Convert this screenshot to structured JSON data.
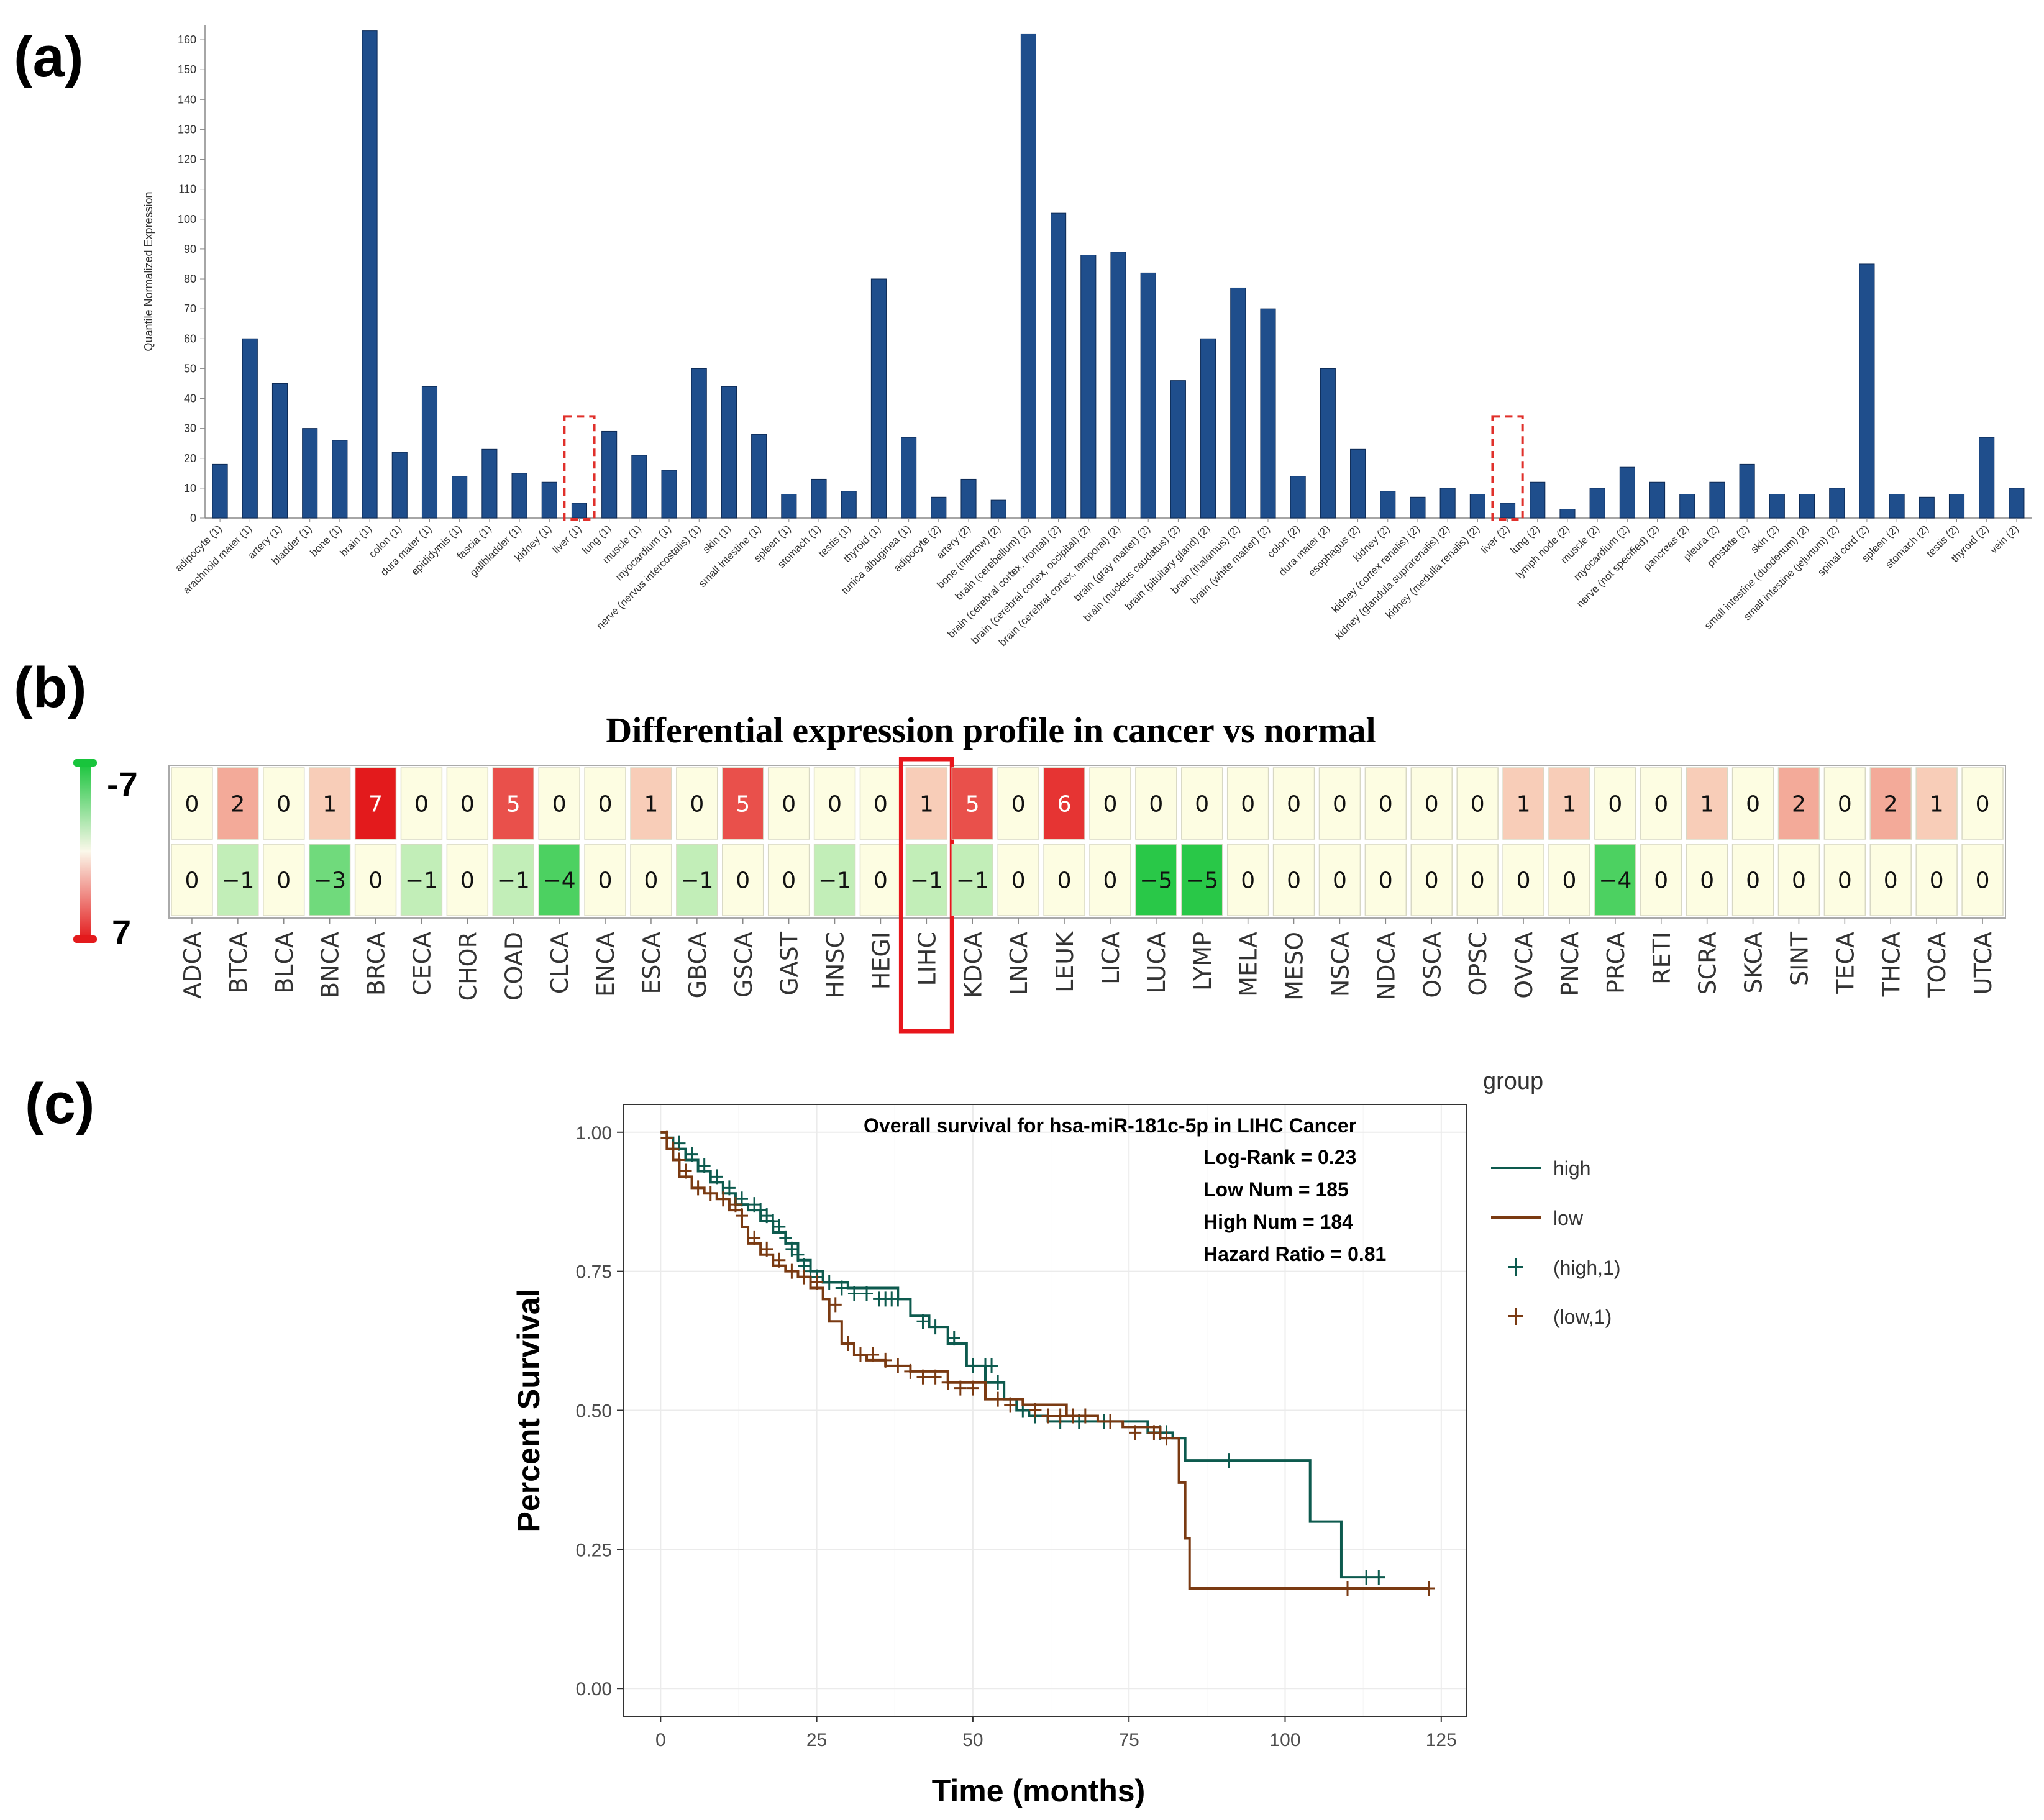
{
  "panel_labels": {
    "a": "(a)",
    "b": "(b)",
    "c": "(c)"
  },
  "chart_data": [
    {
      "panel": "a",
      "type": "bar",
      "ylabel": "Quantile Normalized Expression",
      "ylim": [
        0,
        165
      ],
      "yticks": [
        0,
        10,
        20,
        30,
        40,
        50,
        60,
        70,
        80,
        90,
        100,
        110,
        120,
        130,
        140,
        150,
        160
      ],
      "bar_color": "#1f4e8c",
      "highlight_color": "#e0302b",
      "highlighted": [
        "liver (1)",
        "liver (2)"
      ],
      "categories": [
        "adipocyte (1)",
        "arachnoid mater (1)",
        "artery (1)",
        "bladder (1)",
        "bone (1)",
        "brain (1)",
        "colon (1)",
        "dura mater (1)",
        "epididymis (1)",
        "fascia (1)",
        "gallbladder (1)",
        "kidney (1)",
        "liver (1)",
        "lung (1)",
        "muscle (1)",
        "myocardium (1)",
        "nerve (nervus intercostalis) (1)",
        "skin (1)",
        "small intestine (1)",
        "spleen (1)",
        "stomach (1)",
        "testis (1)",
        "thyroid (1)",
        "tunica albuginea (1)",
        "adipocyte (2)",
        "artery (2)",
        "bone (marrow) (2)",
        "brain (cerebellum) (2)",
        "brain (cerebral cortex, frontal) (2)",
        "brain (cerebral cortex, occipital) (2)",
        "brain (cerebral cortex, temporal) (2)",
        "brain (gray matter) (2)",
        "brain (nucleus caudatus) (2)",
        "brain (pituitary gland) (2)",
        "brain (thalamus) (2)",
        "brain (white matter) (2)",
        "colon (2)",
        "dura mater (2)",
        "esophagus (2)",
        "kidney (2)",
        "kidney (cortex renalis) (2)",
        "kidney (glandula suprarenalis) (2)",
        "kidney (medulla renalis) (2)",
        "liver (2)",
        "lung (2)",
        "lymph node (2)",
        "muscle (2)",
        "myocardium (2)",
        "nerve (not specified) (2)",
        "pancreas (2)",
        "pleura (2)",
        "prostate (2)",
        "skin (2)",
        "small intestine (duodenum) (2)",
        "small intestine (jejunum) (2)",
        "spinal cord (2)",
        "spleen (2)",
        "stomach (2)",
        "testis (2)",
        "thyroid (2)",
        "vein (2)"
      ],
      "values": [
        18,
        60,
        45,
        30,
        26,
        163,
        22,
        44,
        14,
        23,
        15,
        12,
        5,
        29,
        21,
        16,
        50,
        44,
        28,
        8,
        13,
        9,
        80,
        27,
        7,
        13,
        6,
        162,
        102,
        88,
        89,
        82,
        46,
        60,
        77,
        70,
        14,
        50,
        23,
        9,
        7,
        10,
        8,
        5,
        12,
        3,
        10,
        17,
        12,
        8,
        12,
        18,
        8,
        8,
        10,
        85,
        8,
        7,
        8,
        27,
        10
      ]
    },
    {
      "panel": "b",
      "type": "heatmap",
      "title": "Differential expression profile in cancer vs normal",
      "scale_top": "-7",
      "scale_bottom": "7",
      "highlighted": "LIHC",
      "categories": [
        "ADCA",
        "BTCA",
        "BLCA",
        "BNCA",
        "BRCA",
        "CECA",
        "CHOR",
        "COAD",
        "CLCA",
        "ENCA",
        "ESCA",
        "GBCA",
        "GSCA",
        "GAST",
        "HNSC",
        "HEGI",
        "LIHC",
        "KDCA",
        "LNCA",
        "LEUK",
        "LICA",
        "LUCA",
        "LYMP",
        "MELA",
        "MESO",
        "NSCA",
        "NDCA",
        "OSCA",
        "OPSC",
        "OVCA",
        "PNCA",
        "PRCA",
        "RETI",
        "SCRA",
        "SKCA",
        "SINT",
        "TECA",
        "THCA",
        "TOCA",
        "UTCA"
      ],
      "row_up": [
        0,
        2,
        0,
        1,
        7,
        0,
        0,
        5,
        0,
        0,
        1,
        0,
        5,
        0,
        0,
        0,
        1,
        5,
        0,
        6,
        0,
        0,
        0,
        0,
        0,
        0,
        0,
        0,
        0,
        1,
        1,
        0,
        0,
        1,
        0,
        2,
        0,
        2,
        1,
        0
      ],
      "row_down": [
        0,
        -1,
        0,
        -3,
        0,
        -1,
        0,
        -1,
        -4,
        0,
        0,
        -1,
        0,
        0,
        -1,
        0,
        -1,
        -1,
        0,
        0,
        0,
        -5,
        -5,
        0,
        0,
        0,
        0,
        0,
        0,
        0,
        0,
        -4,
        0,
        0,
        0,
        0,
        0,
        0,
        0,
        0
      ],
      "row_up_labels": [
        "0",
        "2",
        "0",
        "1",
        "7",
        "0",
        "0",
        "5",
        "0",
        "0",
        "1",
        "0",
        "5",
        "0",
        "0",
        "0",
        "1",
        "5",
        "0",
        "6",
        "0",
        "0",
        "0",
        "0",
        "0",
        "0",
        "0",
        "0",
        "0",
        "1",
        "1",
        "0",
        "0",
        "1",
        "0",
        "2",
        "0",
        "2",
        "1",
        "0"
      ],
      "row_down_labels": [
        "0",
        "−1",
        "0",
        "−3",
        "0",
        "−1",
        "0",
        "−1",
        "−4",
        "0",
        "0",
        "−1",
        "0",
        "0",
        "−1",
        "0",
        "−1",
        "−1",
        "0",
        "0",
        "0",
        "−5",
        "−5",
        "0",
        "0",
        "0",
        "0",
        "0",
        "0",
        "0",
        "0",
        "−4",
        "0",
        "0",
        "0",
        "0",
        "0",
        "0",
        "0",
        "0"
      ]
    },
    {
      "panel": "c",
      "type": "line",
      "subtype": "kaplan-meier",
      "title": "Overall survival for hsa-miR-181c-5p in LIHC Cancer",
      "annotations": [
        "Log-Rank = 0.23",
        "Low Num = 185",
        "High Num = 184",
        "Hazard Ratio = 0.81"
      ],
      "xlabel": "Time (months)",
      "ylabel": "Percent Survival",
      "xlim": [
        -6,
        129
      ],
      "ylim": [
        -0.05,
        1.05
      ],
      "xticks": [
        0,
        25,
        50,
        75,
        100,
        125
      ],
      "yticks": [
        0.0,
        0.25,
        0.5,
        0.75,
        1.0
      ],
      "ytick_labels": [
        "0.00",
        "0.25",
        "0.50",
        "0.75",
        "1.00"
      ],
      "legend_title": "group",
      "legend": [
        "high",
        "low",
        "(high,1)",
        "(low,1)"
      ],
      "series": [
        {
          "name": "high",
          "color": "#0d5a4e",
          "x": [
            0,
            1,
            2,
            4,
            6,
            8,
            10,
            12,
            14,
            16,
            18,
            20,
            22,
            24,
            26,
            30,
            38,
            40,
            43,
            46,
            49,
            52,
            55,
            57,
            59,
            62,
            70,
            78,
            82,
            84,
            104,
            109,
            116
          ],
          "y": [
            1.0,
            0.99,
            0.97,
            0.95,
            0.93,
            0.91,
            0.89,
            0.87,
            0.86,
            0.84,
            0.82,
            0.8,
            0.77,
            0.75,
            0.73,
            0.72,
            0.7,
            0.67,
            0.65,
            0.62,
            0.58,
            0.55,
            0.52,
            0.5,
            0.49,
            0.48,
            0.48,
            0.46,
            0.45,
            0.41,
            0.3,
            0.2,
            0.2
          ],
          "censor_x": [
            3,
            5,
            7,
            9,
            11,
            13,
            15,
            16,
            17,
            18,
            19,
            20,
            21,
            22,
            23,
            24,
            25,
            27,
            29,
            31,
            33,
            35,
            36,
            37,
            38,
            42,
            44,
            47,
            50,
            52,
            53,
            54,
            58,
            60,
            64,
            67,
            71,
            80,
            81,
            91,
            113,
            115
          ],
          "censor_y": [
            0.98,
            0.96,
            0.94,
            0.92,
            0.9,
            0.88,
            0.87,
            0.86,
            0.85,
            0.84,
            0.83,
            0.81,
            0.79,
            0.78,
            0.76,
            0.75,
            0.74,
            0.73,
            0.72,
            0.71,
            0.71,
            0.7,
            0.7,
            0.7,
            0.7,
            0.66,
            0.65,
            0.63,
            0.58,
            0.58,
            0.58,
            0.55,
            0.5,
            0.49,
            0.48,
            0.48,
            0.48,
            0.46,
            0.46,
            0.41,
            0.2,
            0.2
          ]
        },
        {
          "name": "low",
          "color": "#7a3a12",
          "x": [
            0,
            1,
            2,
            3,
            5,
            7,
            9,
            11,
            13,
            14,
            16,
            18,
            20,
            22,
            24,
            26,
            27,
            29,
            31,
            33,
            36,
            40,
            46,
            52,
            58,
            65,
            70,
            74,
            80,
            83,
            84,
            84.7,
            85,
            110,
            123
          ],
          "y": [
            1.0,
            0.97,
            0.95,
            0.92,
            0.9,
            0.89,
            0.88,
            0.86,
            0.83,
            0.8,
            0.78,
            0.76,
            0.75,
            0.74,
            0.72,
            0.7,
            0.66,
            0.62,
            0.6,
            0.59,
            0.58,
            0.57,
            0.55,
            0.52,
            0.51,
            0.49,
            0.48,
            0.47,
            0.45,
            0.37,
            0.27,
            0.18,
            0.18,
            0.18,
            0.18
          ],
          "censor_x": [
            1,
            2,
            3,
            4,
            6,
            8,
            10,
            12,
            13,
            15,
            17,
            19,
            21,
            23,
            25,
            28,
            30,
            32,
            34,
            36,
            38,
            40,
            42,
            44,
            46,
            48,
            50,
            54,
            56,
            60,
            62,
            64,
            66,
            68,
            72,
            76,
            79,
            81,
            110,
            123
          ],
          "censor_y": [
            0.99,
            0.97,
            0.95,
            0.93,
            0.9,
            0.89,
            0.88,
            0.87,
            0.85,
            0.81,
            0.79,
            0.77,
            0.75,
            0.74,
            0.73,
            0.69,
            0.62,
            0.6,
            0.6,
            0.59,
            0.58,
            0.57,
            0.56,
            0.56,
            0.55,
            0.54,
            0.54,
            0.52,
            0.51,
            0.5,
            0.49,
            0.49,
            0.49,
            0.49,
            0.48,
            0.46,
            0.46,
            0.45,
            0.18,
            0.18
          ]
        }
      ]
    }
  ]
}
